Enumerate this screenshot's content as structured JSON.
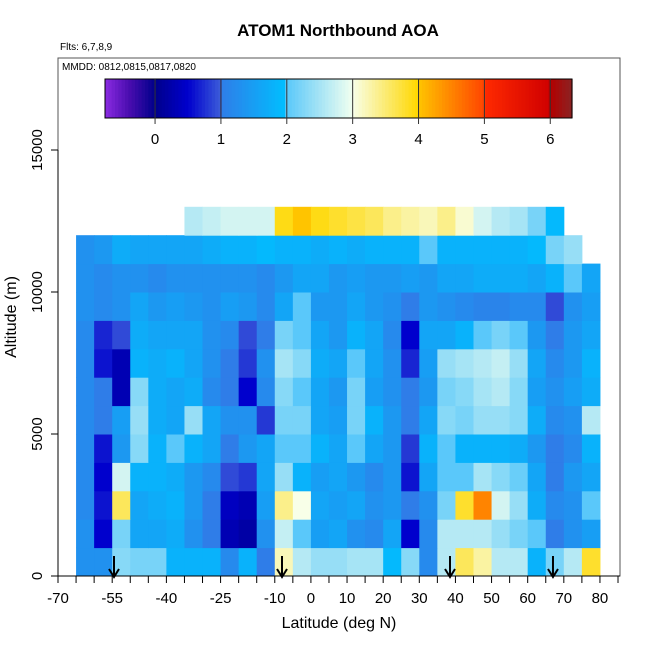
{
  "chart_data": {
    "type": "heatmap",
    "title": "ATOM1 Northbound AOA",
    "subtitle_flights": "Flts: 6,7,8,9",
    "subtitle_dates": "MMDD: 0812,0815,0817,0820",
    "xlabel": "Latitude (deg N)",
    "ylabel": "Altitude (m)",
    "xlim": [
      -70,
      85
    ],
    "ylim": [
      0,
      18000
    ],
    "x_tick_labels": [
      "-70",
      "-55",
      "-40",
      "-25",
      "-10",
      "0",
      "10",
      "20",
      "30",
      "40",
      "50",
      "60",
      "70",
      "80"
    ],
    "x_tick_values": [
      -70,
      -55,
      -40,
      -25,
      -10,
      0,
      10,
      20,
      30,
      40,
      50,
      60,
      70,
      80
    ],
    "y_tick_labels": [
      "0",
      "5000",
      "10000",
      "15000"
    ],
    "y_tick_values": [
      0,
      5000,
      10000,
      15000
    ],
    "colorbar": {
      "range": [
        -0.76,
        6.33
      ],
      "tick_labels": [
        "0",
        "1",
        "2",
        "3",
        "4",
        "5",
        "6"
      ],
      "tick_values": [
        0,
        1,
        2,
        3,
        4,
        5,
        6
      ],
      "stops": [
        [
          -0.76,
          "#8a2be2"
        ],
        [
          -0.4,
          "#4b0db0"
        ],
        [
          0,
          "#00008b"
        ],
        [
          0.5,
          "#0000cd"
        ],
        [
          0.99,
          "#3b5bd9"
        ],
        [
          1.0,
          "#2f7de8"
        ],
        [
          1.99,
          "#00bfff"
        ],
        [
          2.0,
          "#5ac8fa"
        ],
        [
          2.99,
          "#f0fff0"
        ],
        [
          3.0,
          "#f8ffe8"
        ],
        [
          3.99,
          "#ffd700"
        ],
        [
          4.0,
          "#ffc400"
        ],
        [
          4.99,
          "#ff4500"
        ],
        [
          5.0,
          "#ff2a00"
        ],
        [
          5.99,
          "#d00000"
        ],
        [
          6.0,
          "#b30000"
        ],
        [
          6.33,
          "#8b2323"
        ]
      ]
    },
    "lat_bins_start": -65,
    "lat_bin_width": 5,
    "alt_bin_width": 1000,
    "values_by_altitude_row": [
      [
        1.3,
        1.3,
        2.3,
        2.2,
        2.2,
        1.8,
        1.8,
        1.8,
        1.2,
        1.8,
        1.0,
        3.2,
        2.6,
        2.4,
        2.4,
        2.5,
        2.5,
        1.9,
        2.3,
        1.2,
        2.6,
        3.6,
        3.3,
        2.6,
        2.6,
        1.8,
        2.2,
        2.6,
        3.8
      ],
      [
        1.3,
        0.5,
        2.2,
        1.6,
        1.6,
        1.7,
        1.3,
        1.0,
        0.3,
        0.2,
        1.3,
        2.7,
        2.0,
        1.5,
        1.6,
        1.3,
        1.2,
        1.6,
        0.5,
        1.2,
        2.6,
        2.6,
        2.6,
        2.4,
        2.2,
        2.0,
        1.0,
        1.3,
        1.5
      ],
      [
        1.2,
        0.6,
        3.6,
        1.6,
        1.7,
        1.8,
        1.4,
        1.0,
        0.4,
        0.3,
        1.5,
        3.4,
        3.0,
        1.6,
        1.5,
        1.6,
        1.3,
        1.4,
        1.0,
        1.3,
        2.2,
        3.8,
        4.5,
        2.8,
        2.4,
        1.7,
        1.2,
        1.3,
        2.0
      ],
      [
        1.2,
        0.5,
        2.8,
        1.8,
        1.8,
        1.7,
        1.4,
        1.2,
        0.9,
        0.8,
        1.6,
        2.4,
        1.8,
        1.5,
        1.6,
        1.4,
        1.2,
        1.4,
        0.6,
        1.6,
        2.0,
        2.0,
        2.5,
        2.3,
        2.1,
        1.6,
        1.0,
        1.4,
        1.6
      ],
      [
        1.2,
        0.6,
        1.4,
        2.3,
        1.8,
        2.0,
        1.8,
        1.6,
        1.0,
        1.4,
        1.6,
        2.0,
        2.0,
        1.8,
        1.6,
        2.0,
        1.6,
        1.4,
        0.8,
        1.8,
        2.0,
        1.8,
        1.8,
        1.8,
        1.7,
        1.4,
        1.0,
        1.2,
        1.8
      ],
      [
        1.2,
        1.0,
        1.5,
        2.4,
        1.7,
        1.6,
        2.4,
        1.6,
        1.3,
        1.3,
        0.8,
        2.2,
        2.2,
        1.6,
        1.5,
        2.2,
        1.8,
        1.4,
        1.0,
        1.6,
        2.3,
        2.2,
        2.4,
        2.4,
        2.3,
        1.7,
        1.2,
        1.3,
        2.6
      ],
      [
        1.2,
        1.0,
        0.3,
        2.3,
        1.7,
        1.6,
        1.7,
        1.2,
        1.0,
        0.5,
        1.2,
        2.3,
        2.0,
        1.6,
        1.4,
        2.2,
        1.5,
        1.3,
        1.0,
        1.4,
        2.2,
        2.3,
        2.5,
        2.6,
        2.3,
        1.5,
        1.3,
        1.5,
        1.7
      ],
      [
        1.2,
        0.6,
        0.3,
        1.8,
        1.7,
        1.8,
        1.6,
        1.3,
        1.0,
        0.8,
        1.3,
        2.5,
        2.3,
        1.7,
        1.6,
        2.0,
        1.6,
        1.3,
        0.7,
        1.5,
        2.4,
        2.5,
        2.6,
        2.7,
        2.4,
        1.6,
        1.2,
        1.4,
        1.8
      ],
      [
        1.2,
        0.7,
        0.9,
        1.7,
        1.6,
        1.6,
        1.6,
        1.3,
        1.2,
        0.9,
        1.0,
        2.2,
        2.0,
        1.6,
        1.4,
        1.8,
        1.6,
        1.2,
        0.5,
        1.6,
        1.6,
        1.8,
        2.0,
        2.2,
        2.0,
        1.4,
        1.0,
        1.4,
        1.6
      ],
      [
        1.3,
        1.2,
        1.3,
        1.6,
        1.4,
        1.5,
        1.4,
        1.3,
        1.5,
        1.4,
        1.2,
        1.6,
        2.0,
        1.4,
        1.4,
        1.6,
        1.4,
        1.3,
        1.0,
        1.4,
        1.3,
        1.2,
        1.1,
        1.1,
        1.2,
        1.2,
        0.9,
        1.3,
        1.5
      ],
      [
        1.3,
        1.2,
        1.3,
        1.3,
        1.2,
        1.3,
        1.3,
        1.3,
        1.3,
        1.3,
        1.2,
        1.4,
        1.6,
        1.6,
        1.4,
        1.5,
        1.4,
        1.4,
        1.5,
        1.4,
        1.6,
        1.6,
        1.7,
        1.7,
        1.7,
        1.6,
        1.8,
        2.0,
        1.6
      ],
      [
        1.3,
        1.4,
        1.7,
        1.6,
        1.6,
        1.6,
        1.6,
        1.7,
        1.8,
        1.8,
        1.9,
        1.8,
        1.8,
        1.7,
        1.8,
        1.7,
        1.8,
        1.8,
        1.8,
        2.0,
        1.8,
        1.8,
        1.8,
        1.8,
        1.8,
        1.9,
        2.2,
        2.4,
        null
      ],
      [
        null,
        null,
        null,
        null,
        null,
        null,
        2.6,
        2.7,
        2.8,
        2.8,
        2.8,
        3.9,
        4.0,
        3.9,
        3.8,
        3.7,
        3.6,
        3.4,
        3.3,
        3.2,
        3.4,
        3.1,
        2.8,
        2.6,
        2.5,
        2.2,
        1.9,
        null,
        null
      ]
    ],
    "arrow_latitudes": [
      -54.5,
      -8,
      38.5,
      67
    ],
    "grid": false,
    "legend": "colorbar top"
  }
}
